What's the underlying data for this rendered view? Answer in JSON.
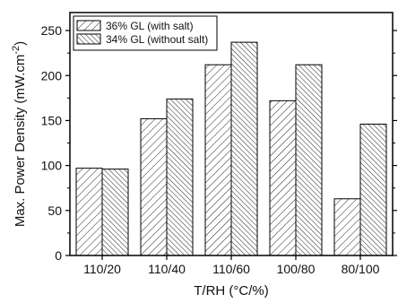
{
  "chart_data": {
    "type": "bar",
    "categories": [
      "110/20",
      "110/40",
      "110/60",
      "100/80",
      "80/100"
    ],
    "series": [
      {
        "name": "36% GL (with salt)",
        "values": [
          97,
          152,
          212,
          172,
          63
        ],
        "pattern": "forward-hatch"
      },
      {
        "name": "34% GL (without salt)",
        "values": [
          96,
          174,
          237,
          212,
          146
        ],
        "pattern": "back-hatch"
      }
    ],
    "xlabel": "T/RH (°C/%)",
    "ylabel": "Max. Power Density (mW.cm",
    "ylabel_superscript": "-2",
    "ylabel_suffix": ")",
    "ylim": [
      0,
      270
    ],
    "yticks": [
      0,
      50,
      100,
      150,
      200,
      250
    ],
    "grid": false,
    "legend_position": "top-left"
  }
}
